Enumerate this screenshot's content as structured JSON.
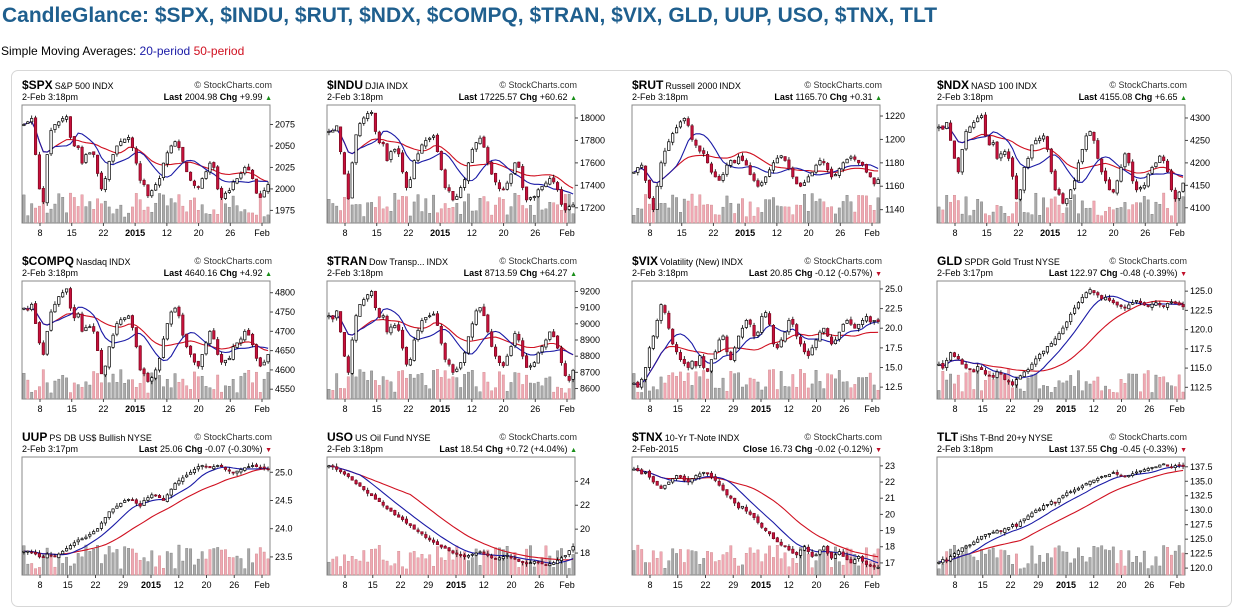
{
  "page": {
    "title": "CandleGlance: $SPX, $INDU, $RUT, $NDX, $COMPQ, $TRAN, $VIX, GLD, UUP, USO, $TNX, TLT",
    "sma_prefix": "Simple Moving Averages: ",
    "sma_20": "20-period",
    "sma_50": "50-period"
  },
  "colors": {
    "title": "#1f5f8e",
    "sma20": "#1a1aa6",
    "sma50": "#d01020",
    "candle_down": "#c8103c",
    "vol_up": "#aaaaaa",
    "vol_down": "#f0a8b4",
    "chg_up": "#1a8f1a",
    "chg_down": "#c0102a"
  },
  "icons": {
    "brand": "copyright-circle-icon",
    "change_up": "triangle-up-icon",
    "change_down": "triangle-down-icon"
  },
  "chart_data": [
    {
      "type": "candlestick",
      "symbol": "$SPX",
      "name": "S&P 500",
      "exchange": "INDX",
      "brand": "© StockCharts.com",
      "timestamp": "2-Feb 3:18pm",
      "last_label": "Last",
      "last": "2004.98",
      "chg_label": "Chg",
      "chg": "+9.99",
      "dir": "up",
      "ylim": [
        1965,
        2093
      ],
      "yticks": [
        "2075",
        "2050",
        "2025",
        "2000",
        "1975"
      ],
      "xticks": [
        "8",
        "15",
        "22",
        "2015",
        "12",
        "20",
        "26",
        "Feb"
      ],
      "path": [
        2075,
        2078,
        2082,
        2040,
        2000,
        1985,
        2040,
        2068,
        2075,
        2078,
        2082,
        2084,
        2060,
        2050,
        2048,
        2030,
        2040,
        2042,
        2040,
        2018,
        2000,
        2012,
        2032,
        2040,
        2050,
        2055,
        2058,
        2060,
        2048,
        2030,
        2010,
        2005,
        1992,
        1998,
        2005,
        2012,
        2030,
        2042,
        2050,
        2055,
        2048,
        2032,
        2020,
        2010,
        2004,
        2002,
        2012,
        2020,
        2030,
        2025,
        2000,
        1990,
        1995,
        1998,
        2008,
        2012,
        2018,
        2025,
        2022,
        2012,
        1995,
        1990,
        1998,
        2005
      ]
    },
    {
      "type": "candlestick",
      "symbol": "$INDU",
      "name": "DJIA",
      "exchange": "INDX",
      "brand": "© StockCharts.com",
      "timestamp": "2-Feb 3:18pm",
      "last_label": "Last",
      "last": "17225.57",
      "chg_label": "Chg",
      "chg": "+60.62",
      "dir": "up",
      "ylim": [
        17100,
        18080
      ],
      "yticks": [
        "18000",
        "17800",
        "17600",
        "17400",
        "17200"
      ],
      "xticks": [
        "8",
        "15",
        "22",
        "2015",
        "12",
        "20",
        "26",
        "Feb"
      ],
      "path": [
        17880,
        17890,
        17930,
        17700,
        17500,
        17280,
        17600,
        17850,
        17950,
        18000,
        18040,
        18050,
        17880,
        17780,
        17770,
        17620,
        17700,
        17720,
        17680,
        17520,
        17380,
        17450,
        17620,
        17680,
        17760,
        17800,
        17820,
        17840,
        17700,
        17540,
        17380,
        17350,
        17270,
        17300,
        17380,
        17450,
        17600,
        17720,
        17780,
        17820,
        17740,
        17600,
        17500,
        17430,
        17370,
        17360,
        17420,
        17500,
        17600,
        17560,
        17380,
        17270,
        17290,
        17300,
        17360,
        17390,
        17420,
        17460,
        17430,
        17360,
        17230,
        17180,
        17210,
        17225
      ]
    },
    {
      "type": "candlestick",
      "symbol": "$RUT",
      "name": "Russell 2000",
      "exchange": "INDX",
      "brand": "© StockCharts.com",
      "timestamp": "2-Feb 3:18pm",
      "last_label": "Last",
      "last": "1165.70",
      "chg_label": "Chg",
      "chg": "+0.31",
      "dir": "up",
      "ylim": [
        1132,
        1226
      ],
      "yticks": [
        "1220",
        "1200",
        "1180",
        "1160",
        "1140"
      ],
      "xticks": [
        "8",
        "15",
        "22",
        "2015",
        "12",
        "20",
        "26",
        "Feb"
      ],
      "path": [
        1172,
        1176,
        1178,
        1165,
        1150,
        1140,
        1160,
        1180,
        1190,
        1198,
        1205,
        1210,
        1215,
        1218,
        1212,
        1200,
        1195,
        1190,
        1188,
        1180,
        1172,
        1168,
        1165,
        1170,
        1178,
        1182,
        1180,
        1185,
        1182,
        1178,
        1170,
        1165,
        1160,
        1163,
        1168,
        1174,
        1180,
        1184,
        1186,
        1182,
        1175,
        1168,
        1162,
        1160,
        1163,
        1168,
        1172,
        1178,
        1182,
        1180,
        1174,
        1168,
        1170,
        1175,
        1180,
        1183,
        1185,
        1183,
        1180,
        1178,
        1172,
        1168,
        1162,
        1165.7
      ]
    },
    {
      "type": "candlestick",
      "symbol": "$NDX",
      "name": "NASD 100",
      "exchange": "INDX",
      "brand": "© StockCharts.com",
      "timestamp": "2-Feb 3:18pm",
      "last_label": "Last",
      "last": "4155.08",
      "chg_label": "Chg",
      "chg": "+6.65",
      "dir": "up",
      "ylim": [
        4075,
        4320
      ],
      "yticks": [
        "4300",
        "4250",
        "4200",
        "4150",
        "4100"
      ],
      "xticks": [
        "8",
        "15",
        "22",
        "2015",
        "12",
        "20",
        "26",
        "Feb"
      ],
      "path": [
        4280,
        4275,
        4290,
        4250,
        4210,
        4180,
        4230,
        4270,
        4280,
        4290,
        4300,
        4305,
        4260,
        4240,
        4245,
        4210,
        4220,
        4225,
        4210,
        4170,
        4120,
        4140,
        4190,
        4210,
        4240,
        4250,
        4255,
        4260,
        4230,
        4180,
        4140,
        4130,
        4110,
        4120,
        4140,
        4160,
        4200,
        4230,
        4260,
        4270,
        4250,
        4210,
        4180,
        4160,
        4140,
        4135,
        4160,
        4190,
        4220,
        4200,
        4160,
        4140,
        4145,
        4150,
        4175,
        4190,
        4200,
        4215,
        4205,
        4180,
        4140,
        4120,
        4135,
        4155
      ]
    },
    {
      "type": "candlestick",
      "symbol": "$COMPQ",
      "name": "Nasdaq",
      "exchange": "INDX",
      "brand": "© StockCharts.com",
      "timestamp": "2-Feb 3:18pm",
      "last_label": "Last",
      "last": "4640.16",
      "chg_label": "Chg",
      "chg": "+4.92",
      "dir": "up",
      "ylim": [
        4535,
        4820
      ],
      "yticks": [
        "4800",
        "4750",
        "4700",
        "4650",
        "4600",
        "4550"
      ],
      "xticks": [
        "8",
        "15",
        "22",
        "2015",
        "12",
        "20",
        "26",
        "Feb"
      ],
      "path": [
        4760,
        4755,
        4770,
        4720,
        4670,
        4640,
        4700,
        4750,
        4770,
        4790,
        4800,
        4810,
        4760,
        4735,
        4745,
        4700,
        4710,
        4712,
        4700,
        4650,
        4590,
        4610,
        4660,
        4690,
        4720,
        4730,
        4735,
        4740,
        4710,
        4660,
        4600,
        4590,
        4570,
        4580,
        4600,
        4630,
        4680,
        4720,
        4750,
        4760,
        4740,
        4690,
        4660,
        4640,
        4620,
        4610,
        4640,
        4670,
        4700,
        4680,
        4640,
        4620,
        4625,
        4630,
        4660,
        4670,
        4680,
        4700,
        4690,
        4665,
        4630,
        4610,
        4620,
        4640
      ]
    },
    {
      "type": "candlestick",
      "symbol": "$TRAN",
      "name": "Dow Transp...",
      "exchange": "INDX",
      "brand": "© StockCharts.com",
      "timestamp": "2-Feb 3:18pm",
      "last_label": "Last",
      "last": "8713.59",
      "chg_label": "Chg",
      "chg": "+64.27",
      "dir": "up",
      "ylim": [
        8560,
        9240
      ],
      "yticks": [
        "9200",
        "9100",
        "9000",
        "8900",
        "8800",
        "8700",
        "8600"
      ],
      "xticks": [
        "8",
        "15",
        "22",
        "2015",
        "12",
        "20",
        "26",
        "Feb"
      ],
      "path": [
        9050,
        9030,
        9080,
        8950,
        8800,
        8700,
        8900,
        9050,
        9120,
        9150,
        9180,
        9200,
        9100,
        9040,
        9050,
        8950,
        8980,
        8990,
        8960,
        8850,
        8750,
        8780,
        8900,
        8960,
        9020,
        9040,
        9050,
        9060,
        8990,
        8880,
        8780,
        8750,
        8700,
        8720,
        8760,
        8820,
        8920,
        9000,
        9080,
        9100,
        9050,
        8950,
        8860,
        8800,
        8760,
        8740,
        8800,
        8860,
        8940,
        8900,
        8800,
        8730,
        8740,
        8760,
        8820,
        8860,
        8900,
        8950,
        8920,
        8850,
        8760,
        8680,
        8650,
        8713
      ]
    },
    {
      "type": "candlestick",
      "symbol": "$VIX",
      "name": "Volatility (New)",
      "exchange": "INDX",
      "brand": "© StockCharts.com",
      "timestamp": "2-Feb 3:18pm",
      "last_label": "Last",
      "last": "20.85",
      "chg_label": "Chg",
      "chg": "-0.12 (-0.57%)",
      "dir": "down",
      "ylim": [
        11.5,
        25.5
      ],
      "yticks": [
        "25.0",
        "22.5",
        "20.0",
        "17.5",
        "15.0",
        "12.5"
      ],
      "xticks": [
        "8",
        "15",
        "22",
        "29",
        "2015",
        "12",
        "20",
        "26",
        "Feb"
      ],
      "path": [
        13,
        12.5,
        13.5,
        15,
        17.5,
        19,
        21,
        23,
        22,
        20,
        18,
        17,
        16,
        15.5,
        15,
        15.8,
        15.2,
        16.5,
        15,
        14.5,
        16,
        17,
        18.5,
        19,
        17,
        16,
        17.5,
        19,
        20,
        21,
        20.5,
        19,
        19.5,
        21.5,
        22,
        20.5,
        18,
        17.5,
        18.5,
        19.5,
        21,
        20.5,
        19,
        18,
        17,
        16.5,
        17.5,
        18.5,
        19.5,
        20,
        19,
        18,
        18.5,
        19.5,
        20.5,
        21,
        20.5,
        20,
        20.5,
        21,
        21.5,
        20.8,
        21,
        20.85
      ]
    },
    {
      "type": "candlestick",
      "symbol": "GLD",
      "name": "SPDR Gold Trust",
      "exchange": "NYSE",
      "brand": "© StockCharts.com",
      "timestamp": "2-Feb 3:17pm",
      "last_label": "Last",
      "last": "122.97",
      "chg_label": "Chg",
      "chg": "-0.48 (-0.39%)",
      "dir": "down",
      "ylim": [
        111.5,
        125.8
      ],
      "yticks": [
        "125.0",
        "122.5",
        "120.0",
        "117.5",
        "115.0",
        "112.5"
      ],
      "xticks": [
        "8",
        "15",
        "22",
        "29",
        "2015",
        "12",
        "20",
        "26",
        "Feb"
      ],
      "path": [
        115.5,
        115,
        116,
        117,
        116.5,
        116.2,
        115.5,
        115,
        114.8,
        114.5,
        115.2,
        114.8,
        114.2,
        114,
        113.8,
        114.5,
        114.2,
        113.5,
        113.2,
        112.8,
        113.5,
        114,
        114.5,
        114.8,
        115.5,
        116.2,
        116.8,
        117.2,
        117.8,
        118.2,
        118.8,
        119.5,
        120.2,
        121,
        122,
        122.8,
        123.5,
        124.2,
        124.8,
        125.2,
        124.8,
        124.5,
        124,
        124.2,
        123.8,
        123.5,
        123.2,
        123,
        122.8,
        123.2,
        123.5,
        123.8,
        123.5,
        123.2,
        123,
        123.3,
        123.5,
        123.2,
        123,
        123.4,
        123.6,
        123.4,
        123.2,
        122.97
      ]
    },
    {
      "type": "candlestick",
      "symbol": "UUP",
      "name": "PS DB US$ Bullish",
      "exchange": "NYSE",
      "brand": "© StockCharts.com",
      "timestamp": "2-Feb 3:17pm",
      "last_label": "Last",
      "last": "25.06",
      "chg_label": "Chg",
      "chg": "-0.07 (-0.30%)",
      "dir": "down",
      "ylim": [
        23.25,
        25.2
      ],
      "yticks": [
        "25.0",
        "24.5",
        "24.0",
        "23.5"
      ],
      "xticks": [
        "8",
        "15",
        "22",
        "29",
        "2015",
        "12",
        "20",
        "26",
        "Feb"
      ],
      "path": [
        23.6,
        23.6,
        23.58,
        23.55,
        23.5,
        23.5,
        23.55,
        23.52,
        23.5,
        23.55,
        23.6,
        23.65,
        23.7,
        23.75,
        23.8,
        23.82,
        23.85,
        23.9,
        23.95,
        24,
        24.1,
        24.2,
        24.3,
        24.35,
        24.4,
        24.45,
        24.5,
        24.52,
        24.5,
        24.45,
        24.4,
        24.5,
        24.55,
        24.6,
        24.58,
        24.55,
        24.5,
        24.6,
        24.7,
        24.8,
        24.85,
        24.9,
        24.95,
        25,
        25.05,
        25.1,
        25.12,
        25.1,
        25.08,
        25.1,
        25.12,
        25.1,
        25.05,
        25.02,
        25,
        25.02,
        25.05,
        25.08,
        25.1,
        25.12,
        25.1,
        25.08,
        25.07,
        25.06
      ]
    },
    {
      "type": "candlestick",
      "symbol": "USO",
      "name": "US Oil Fund",
      "exchange": "NYSE",
      "brand": "© StockCharts.com",
      "timestamp": "2-Feb 3:18pm",
      "last_label": "Last",
      "last": "18.54",
      "chg_label": "Chg",
      "chg": "+0.72 (+4.04%)",
      "dir": "up",
      "ylim": [
        16.5,
        25.7
      ],
      "yticks": [
        "24",
        "22",
        "20",
        "18"
      ],
      "xticks": [
        "8",
        "15",
        "22",
        "29",
        "2015",
        "12",
        "20",
        "26",
        "Feb"
      ],
      "path": [
        25.3,
        25.2,
        25,
        24.8,
        24.6,
        24.4,
        24.1,
        23.8,
        23.6,
        23.3,
        23,
        22.8,
        22.5,
        22.3,
        22,
        21.7,
        21.5,
        21.2,
        21,
        20.8,
        20.5,
        20.3,
        20,
        19.8,
        19.6,
        19.3,
        19.1,
        18.9,
        18.7,
        18.5,
        18.4,
        18.2,
        18,
        17.9,
        17.8,
        17.7,
        17.8,
        17.9,
        18,
        18.1,
        17.9,
        17.8,
        17.6,
        17.5,
        17.6,
        17.7,
        17.8,
        17.6,
        17.5,
        17.3,
        17.2,
        17.1,
        17.2,
        17.3,
        17.2,
        17.1,
        17,
        17.1,
        17.2,
        17.4,
        17.6,
        17.8,
        18.2,
        18.54
      ]
    },
    {
      "type": "candlestick",
      "symbol": "$TNX",
      "name": "10-Yr T-Note",
      "exchange": "INDX",
      "brand": "© StockCharts.com",
      "timestamp": "2-Feb-2015",
      "last_label": "Close",
      "last": "16.73",
      "chg_label": "Chg",
      "chg": "-0.02 (-0.12%)",
      "dir": "down",
      "ylim": [
        16.5,
        23.3
      ],
      "yticks": [
        "23",
        "22",
        "21",
        "20",
        "19",
        "18",
        "17"
      ],
      "xticks": [
        "8",
        "15",
        "22",
        "29",
        "2015",
        "12",
        "20",
        "26",
        "Feb"
      ],
      "path": [
        22.8,
        22.7,
        22.5,
        22.6,
        22.3,
        22,
        21.8,
        21.6,
        21.8,
        22,
        22.2,
        22.4,
        22.3,
        22.1,
        22,
        22.2,
        22.4,
        22.5,
        22.6,
        22.5,
        22.3,
        22.1,
        21.8,
        21.5,
        21.2,
        21,
        20.7,
        20.4,
        20.5,
        20.2,
        20,
        19.8,
        19.5,
        19.2,
        19,
        18.8,
        18.5,
        18.3,
        18.1,
        18,
        17.8,
        17.6,
        17.5,
        17.8,
        18,
        17.7,
        17.4,
        17.5,
        17.8,
        18,
        17.6,
        17.3,
        17.5,
        17.7,
        17.4,
        17.2,
        17,
        17.2,
        17.4,
        17.1,
        16.9,
        16.8,
        16.75,
        16.73
      ]
    },
    {
      "type": "candlestick",
      "symbol": "TLT",
      "name": "iShs T-Bnd 20+y",
      "exchange": "NYSE",
      "brand": "© StockCharts.com",
      "timestamp": "2-Feb 3:18pm",
      "last_label": "Last",
      "last": "137.55",
      "chg_label": "Chg",
      "chg": "-0.45 (-0.33%)",
      "dir": "down",
      "ylim": [
        119.5,
        138.5
      ],
      "yticks": [
        "137.5",
        "135.0",
        "132.5",
        "130.0",
        "127.5",
        "125.0",
        "122.5",
        "120.0"
      ],
      "xticks": [
        "8",
        "15",
        "22",
        "29",
        "2015",
        "12",
        "20",
        "26",
        "Feb"
      ],
      "path": [
        121,
        121.5,
        121.2,
        122,
        122.5,
        123,
        123.5,
        123.8,
        124,
        124.5,
        125,
        125.5,
        125.8,
        126,
        126.2,
        126.5,
        126.3,
        126.8,
        127,
        127.5,
        127.2,
        128,
        128.5,
        129,
        129.5,
        130,
        130.2,
        130.8,
        131,
        131.5,
        131.2,
        132,
        132.5,
        133,
        133.2,
        133.5,
        133.8,
        134.2,
        134.6,
        135,
        135.2,
        135.5,
        135.8,
        136,
        136.2,
        136.5,
        136.2,
        136,
        135.8,
        136,
        136.3,
        136.6,
        136.8,
        137,
        137.2,
        137.4,
        137.5,
        137.8,
        138,
        137.6,
        137.4,
        137.7,
        137.8,
        137.55
      ]
    }
  ]
}
